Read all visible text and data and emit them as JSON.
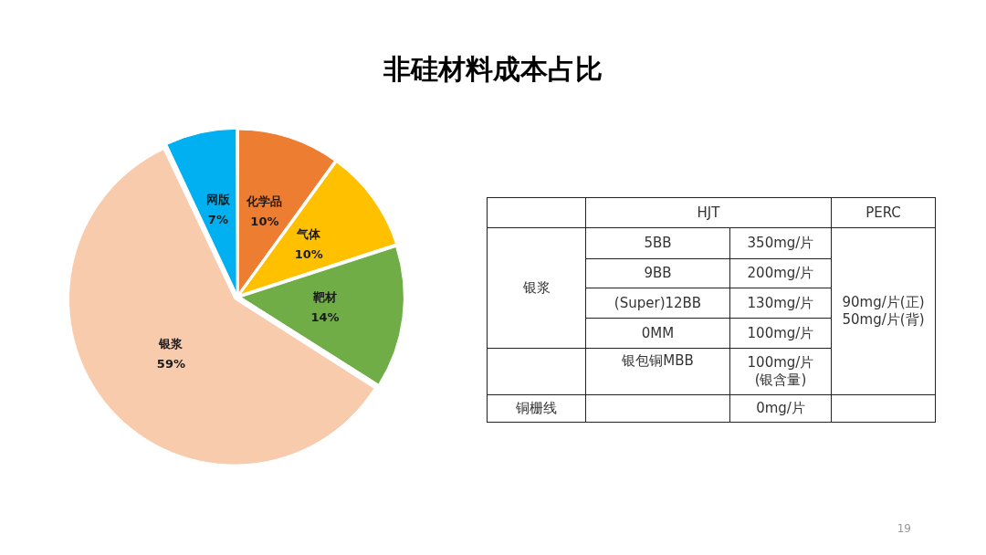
{
  "chart_data": [
    {
      "type": "pie",
      "title": "非硅材料成本占比",
      "categories": [
        "化学品",
        "气体",
        "靶材",
        "银浆",
        "网版"
      ],
      "values": [
        10,
        10,
        14,
        59,
        7
      ],
      "colors": [
        "#ed7d31",
        "#ffc000",
        "#70ad47",
        "#f8cbad",
        "#00b0f0"
      ],
      "value_labels": [
        "10%",
        "10%",
        "14%",
        "59%",
        "7%"
      ],
      "annotations": [
        "19"
      ]
    },
    {
      "type": "other",
      "annotations": [
        "HJT",
        "PERC",
        "银浆",
        "5BB",
        "350mg/片",
        "90mg/片(正)\n50mg/片(背)",
        "9BB",
        "200mg/片",
        "(Super)12BB",
        "130mg/片",
        "0MM",
        "100mg/片",
        "银包铜MBB",
        "100mg/片\n(银含量)",
        "铜栅线",
        "0mg/片"
      ]
    }
  ]
}
